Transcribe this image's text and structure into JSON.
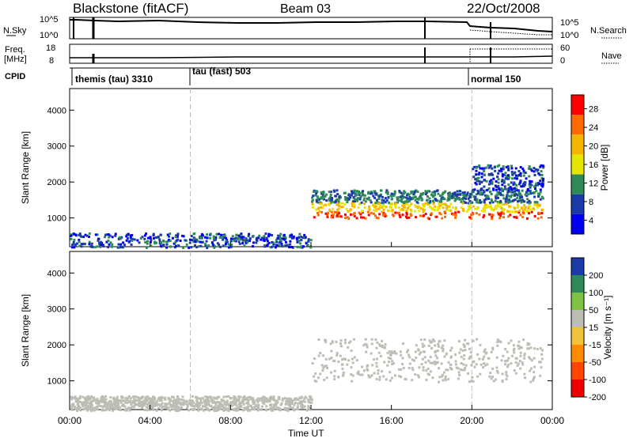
{
  "header": {
    "title": "Blackstone (fitACF)",
    "beam": "Beam 03",
    "date": "22/Oct/2008"
  },
  "chart_data": [
    {
      "type": "line",
      "title": "N.Sky / N.Search",
      "left_label": "N.Sky",
      "right_label": "N.Search",
      "left_ticks": [
        "10^5",
        "10^0"
      ],
      "right_ticks": [
        "10^5",
        "10^0"
      ],
      "note": "sky noise (solid) near 10^5 most of day; search noise (dotted) appears after 20:00"
    },
    {
      "type": "line",
      "left_label_line1": "Freq.",
      "left_label_line2": "[MHz]",
      "right_label": "Nave",
      "left_ticks": [
        "18",
        "8"
      ],
      "right_ticks": [
        "60",
        "0"
      ],
      "frequency_mhz_approx": 10.5,
      "nave_approx": 25
    },
    {
      "type": "table",
      "label": "CPID",
      "segments": [
        {
          "start_h": 0,
          "end_h": 6,
          "text": "themis (tau) 3310"
        },
        {
          "start_h": 6,
          "end_h": 20,
          "text": "tau (fast) 503"
        },
        {
          "start_h": 20,
          "end_h": 24,
          "text": "normal 150"
        }
      ]
    },
    {
      "type": "heatmap",
      "ylabel": "Slant Range [km]",
      "colorbar_label": "Power [dB]",
      "colorbar_ticks": [
        "28",
        "24",
        "20",
        "16",
        "12",
        "8",
        "4"
      ],
      "colorbar_colors": [
        "#ff0000",
        "#ff6a00",
        "#f5b400",
        "#e6e600",
        "#2e8b57",
        "#1a3aa8",
        "#0000ee"
      ],
      "yticks": [
        "1000",
        "2000",
        "3000",
        "4000"
      ],
      "ylim": [
        200,
        4600
      ],
      "xlim_hours": [
        0,
        24
      ],
      "scatter_regions": [
        {
          "x": [
            0,
            12
          ],
          "y": [
            200,
            600
          ],
          "note": "sparse low-power ground scatter"
        },
        {
          "x": [
            12,
            23.5
          ],
          "y": [
            1000,
            1800
          ],
          "note": "main band, high power at lower edge"
        },
        {
          "x": [
            20,
            23.5
          ],
          "y": [
            1800,
            2500
          ],
          "note": "secondary band"
        }
      ]
    },
    {
      "type": "heatmap",
      "ylabel": "Slant Range [km]",
      "colorbar_label": "Velocity [m s⁻¹]",
      "colorbar_ticks": [
        "200",
        "100",
        "50",
        "15",
        "-15",
        "-50",
        "-100",
        "-200"
      ],
      "colorbar_colors": [
        "#1a3aa8",
        "#2e8b57",
        "#7dc242",
        "#bdbdb5",
        "#f2c23a",
        "#ff8c00",
        "#ff4500",
        "#ee0000"
      ],
      "yticks": [
        "1000",
        "2000",
        "3000",
        "4000"
      ],
      "ylim": [
        200,
        4600
      ],
      "xlim_hours": [
        0,
        24
      ],
      "scatter_regions": [
        {
          "x": [
            12,
            23.5
          ],
          "y": [
            1000,
            2200
          ],
          "note": "ground scatter, grey"
        },
        {
          "x": [
            0,
            12
          ],
          "y": [
            200,
            600
          ],
          "note": "sparse low-velocity scatter"
        }
      ]
    }
  ],
  "x_axis": {
    "ticks": [
      "00:00",
      "04:00",
      "08:00",
      "12:00",
      "16:00",
      "20:00",
      "00:00"
    ],
    "label": "Time UT"
  }
}
